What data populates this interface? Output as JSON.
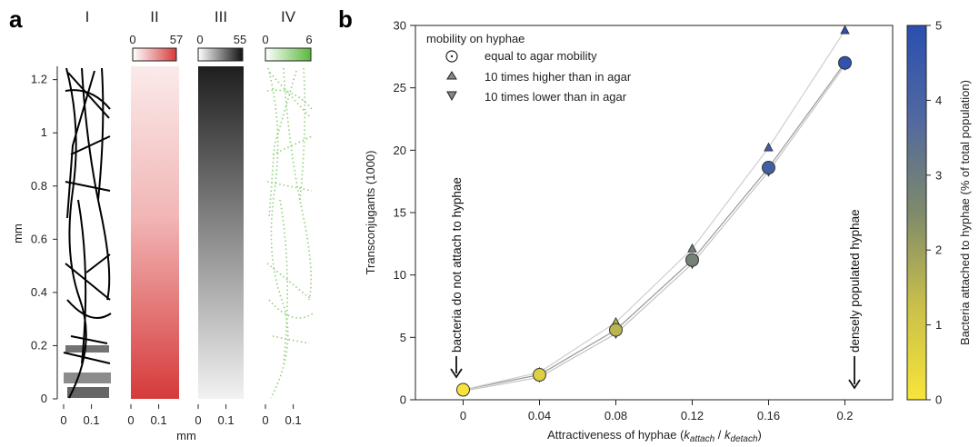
{
  "panel_a": {
    "letter": "a",
    "strips": [
      {
        "numeral": "I",
        "color": "#000000",
        "scale": null
      },
      {
        "numeral": "II",
        "color": "#d63a3a",
        "scale": {
          "min": "0",
          "max": "57"
        }
      },
      {
        "numeral": "III",
        "color": "#1a1a1a",
        "scale": {
          "min": "0",
          "max": "55"
        }
      },
      {
        "numeral": "IV",
        "color": "#5ab83a",
        "scale": {
          "min": "0",
          "max": "6"
        }
      }
    ],
    "ylabel": "mm",
    "xlabel": "mm",
    "yticks": [
      "0",
      "0.2",
      "0.4",
      "0.6",
      "0.8",
      "1",
      "1.2"
    ],
    "xticks": [
      "0",
      "0.1"
    ]
  },
  "panel_b": {
    "letter": "b",
    "legend_title": "mobility on hyphae",
    "legend": [
      {
        "marker": "circle",
        "label": "equal to agar mobility"
      },
      {
        "marker": "triangle-up",
        "label": "10 times higher than in agar"
      },
      {
        "marker": "triangle-down",
        "label": "10 times lower than in agar"
      }
    ],
    "annotation_left": "bacteria do not attach to hyphae",
    "annotation_right": "densely populated hyphae",
    "colorbar": {
      "label": "Bacteria attached to hyphae (% of total population)",
      "ticks": [
        "0",
        "1",
        "2",
        "3",
        "4",
        "5"
      ],
      "low_color": "#f5e23a",
      "mid_color": "#7f8a6a",
      "high_color": "#2a4fb0"
    }
  },
  "chart_data": {
    "type": "scatter",
    "title": "",
    "xlabel_prefix": "Attractiveness of hyphae (",
    "xlabel_k1": "k",
    "xlabel_sub1": "attach",
    "xlabel_mid": " / ",
    "xlabel_k2": "k",
    "xlabel_sub2": "detach",
    "xlabel_suffix": ")",
    "ylabel": "Transconjugants (1000)",
    "xlim": [
      -0.025,
      0.225
    ],
    "ylim": [
      0,
      30
    ],
    "xticks": [
      0,
      0.04,
      0.08,
      0.12,
      0.16,
      0.2
    ],
    "xtick_labels": [
      "0",
      "0.04",
      "0.08",
      "0.12",
      "0.16",
      "0.2"
    ],
    "yticks": [
      0,
      5,
      10,
      15,
      20,
      25,
      30
    ],
    "x": [
      0,
      0.04,
      0.08,
      0.12,
      0.16,
      0.2
    ],
    "colorbar_range": [
      0,
      5
    ],
    "series": [
      {
        "name": "equal to agar mobility",
        "marker": "circle",
        "values": [
          0.8,
          2.0,
          5.6,
          11.2,
          18.6,
          27.0
        ],
        "attached_pct": [
          0.0,
          0.7,
          1.5,
          2.8,
          4.2,
          4.8
        ]
      },
      {
        "name": "10 times higher than in agar",
        "marker": "triangle-up",
        "values": [
          0.8,
          2.2,
          6.2,
          12.1,
          20.2,
          29.6
        ],
        "attached_pct": [
          0.0,
          0.7,
          1.6,
          2.9,
          4.3,
          4.9
        ]
      },
      {
        "name": "10 times lower than in agar",
        "marker": "triangle-down",
        "values": [
          0.7,
          1.8,
          5.3,
          10.9,
          18.3,
          26.8
        ],
        "attached_pct": [
          0.0,
          0.7,
          1.4,
          2.7,
          4.1,
          4.7
        ]
      }
    ]
  }
}
